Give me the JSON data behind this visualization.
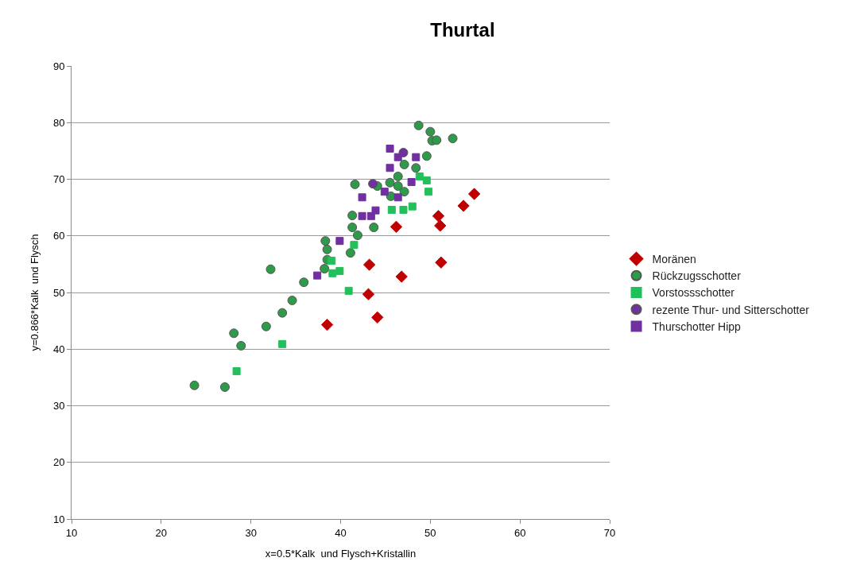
{
  "chart_data": {
    "type": "scatter",
    "title": "Thurtal",
    "xlabel": "x=0.5*Kalk  und Flysch+Kristallin",
    "ylabel": "y=0.866*Kalk  und Flysch",
    "xlim": [
      10,
      70
    ],
    "xticks": [
      10,
      20,
      30,
      40,
      50,
      60,
      70
    ],
    "ylim": [
      10,
      90
    ],
    "yticks": [
      10,
      20,
      30,
      40,
      50,
      60,
      70,
      80,
      90
    ],
    "grid": "y",
    "legend": "right",
    "series": [
      {
        "name": "Moränen",
        "color": "#c00000",
        "marker": "diamond",
        "x": [
          38.5,
          43.2,
          43.1,
          44.1,
          46.2,
          46.8,
          50.9,
          51.1,
          51.2,
          53.7,
          54.9
        ],
        "values": [
          44.3,
          54.9,
          49.7,
          45.6,
          61.6,
          52.8,
          63.5,
          61.8,
          55.3,
          65.3,
          67.4
        ]
      },
      {
        "name": "Rückzugsschotter",
        "color": "#2e9a4a",
        "marker": "circle",
        "x": [
          23.7,
          27.1,
          28.1,
          28.9,
          31.7,
          32.2,
          33.5,
          34.6,
          35.9,
          38.3,
          38.5,
          38.5,
          38.2,
          41.1,
          41.3,
          41.3,
          41.6,
          41.9,
          43.7,
          44.1,
          45.5,
          46.4,
          45.6,
          47.1,
          46.4,
          47.1,
          48.4,
          49.6,
          48.7,
          50.0,
          50.2,
          50.7,
          52.5
        ],
        "values": [
          33.6,
          33.3,
          42.8,
          40.6,
          44.0,
          54.1,
          46.4,
          48.6,
          51.8,
          59.1,
          57.6,
          55.8,
          54.2,
          57.0,
          61.5,
          63.6,
          69.1,
          60.1,
          61.5,
          68.8,
          69.4,
          68.8,
          67.0,
          67.8,
          70.5,
          72.6,
          72.0,
          74.1,
          79.5,
          78.4,
          76.8,
          76.9,
          77.2
        ]
      },
      {
        "name": "Vorstossschotter",
        "color": "#22c05a",
        "marker": "square",
        "x": [
          28.4,
          33.5,
          40.9,
          39.0,
          39.1,
          39.9,
          41.5,
          45.7,
          47.0,
          48.0,
          48.8,
          49.6,
          49.8
        ],
        "values": [
          36.1,
          40.9,
          50.3,
          55.6,
          53.4,
          53.8,
          58.4,
          64.6,
          64.6,
          65.2,
          70.5,
          69.8,
          67.8
        ]
      },
      {
        "name": "rezente Thur- und Sitterschotter",
        "color": "#7030a0",
        "marker": "circle",
        "x": [
          43.6,
          47.0
        ],
        "values": [
          69.2,
          74.7
        ]
      },
      {
        "name": "Thurschotter Hipp",
        "color": "#7030a0",
        "marker": "square",
        "x": [
          37.4,
          39.9,
          42.4,
          42.4,
          43.4,
          43.9,
          44.9,
          46.4,
          47.9,
          45.5,
          46.4,
          48.4,
          45.5
        ],
        "values": [
          53.0,
          59.1,
          63.5,
          66.8,
          63.5,
          64.5,
          67.8,
          66.8,
          69.5,
          72.0,
          73.9,
          73.9,
          75.4
        ]
      }
    ]
  }
}
